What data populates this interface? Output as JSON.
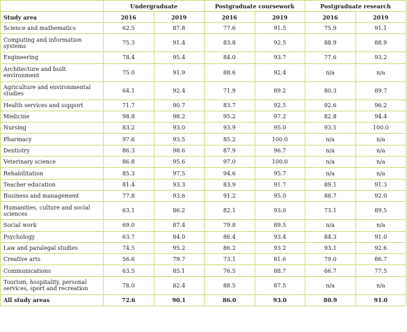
{
  "table": {
    "group_headers": [
      "Undergraduate",
      "Postgraduate coursework",
      "Postgraduate research"
    ],
    "column_headers": [
      "Study area",
      "2016",
      "2019",
      "2016",
      "2019",
      "2016",
      "2019"
    ],
    "rows": [
      [
        "Science and mathematics",
        "62.5",
        "87.8",
        "77.6",
        "91.5",
        "75.9",
        "91.1"
      ],
      [
        "Computing and information systems",
        "75.3",
        "91.4",
        "83.8",
        "92.5",
        "88.9",
        "88.9"
      ],
      [
        "Engineering",
        "78.4",
        "95.4",
        "84.0",
        "93.7",
        "77.6",
        "93.2"
      ],
      [
        "Architecture and built environment",
        "75.0",
        "91.9",
        "88.6",
        "92.4",
        "n/a",
        "n/a"
      ],
      [
        "Agriculture and environmental studies",
        "64.1",
        "92.4",
        "71.9",
        "89.2",
        "80.3",
        "89.7"
      ],
      [
        "Health services and support",
        "71.7",
        "90.7",
        "83.7",
        "92.5",
        "92.6",
        "96.2"
      ],
      [
        "Medicine",
        "98.8",
        "98.2",
        "95.2",
        "97.2",
        "82.8",
        "94.4"
      ],
      [
        "Nursing",
        "83.2",
        "93.0",
        "93.9",
        "95.0",
        "93.5",
        "100.0"
      ],
      [
        "Pharmacy",
        "97.6",
        "93.5",
        "85.2",
        "100.0",
        "n/a",
        "n/a"
      ],
      [
        "Dentistry",
        "86.3",
        "98.6",
        "87.9",
        "96.7",
        "n/a",
        "n/a"
      ],
      [
        "Veterinary science",
        "86.8",
        "95.6",
        "97.0",
        "100.0",
        "n/a",
        "n/a"
      ],
      [
        "Rehabilitation",
        "85.3",
        "97.5",
        "94.6",
        "95.7",
        "n/a",
        "n/a"
      ],
      [
        "Teacher education",
        "81.4",
        "93.3",
        "83.9",
        "91.7",
        "89.1",
        "91.3"
      ],
      [
        "Business and management",
        "77.8",
        "93.6",
        "91.2",
        "95.0",
        "88.7",
        "92.0"
      ],
      [
        "Humanities, culture and social sciences",
        "63.1",
        "86.2",
        "82.1",
        "93.0",
        "73.1",
        "89.5"
      ],
      [
        "Social work",
        "69.0",
        "87.4",
        "79.8",
        "89.5",
        "n/a",
        "n/a"
      ],
      [
        "Psychology",
        "63.7",
        "84.0",
        "86.4",
        "93.4",
        "84.3",
        "91.0"
      ],
      [
        "Law and paralegal studies",
        "74.5",
        "95.2",
        "86.2",
        "93.2",
        "93.1",
        "92.6"
      ],
      [
        "Creative arts",
        "56.6",
        "79.7",
        "73.1",
        "81.6",
        "79.0",
        "86.7"
      ],
      [
        "Communications",
        "63.5",
        "85.1",
        "76.5",
        "88.7",
        "66.7",
        "77.5"
      ],
      [
        "Tourism, hospitality, personal services, sport and recreation",
        "78.0",
        "82.4",
        "88.5",
        "87.5",
        "n/a",
        "n/a"
      ],
      [
        "All study areas",
        "72.6",
        "90.1",
        "86.0",
        "93.0",
        "80.9",
        "91.0"
      ]
    ]
  }
}
